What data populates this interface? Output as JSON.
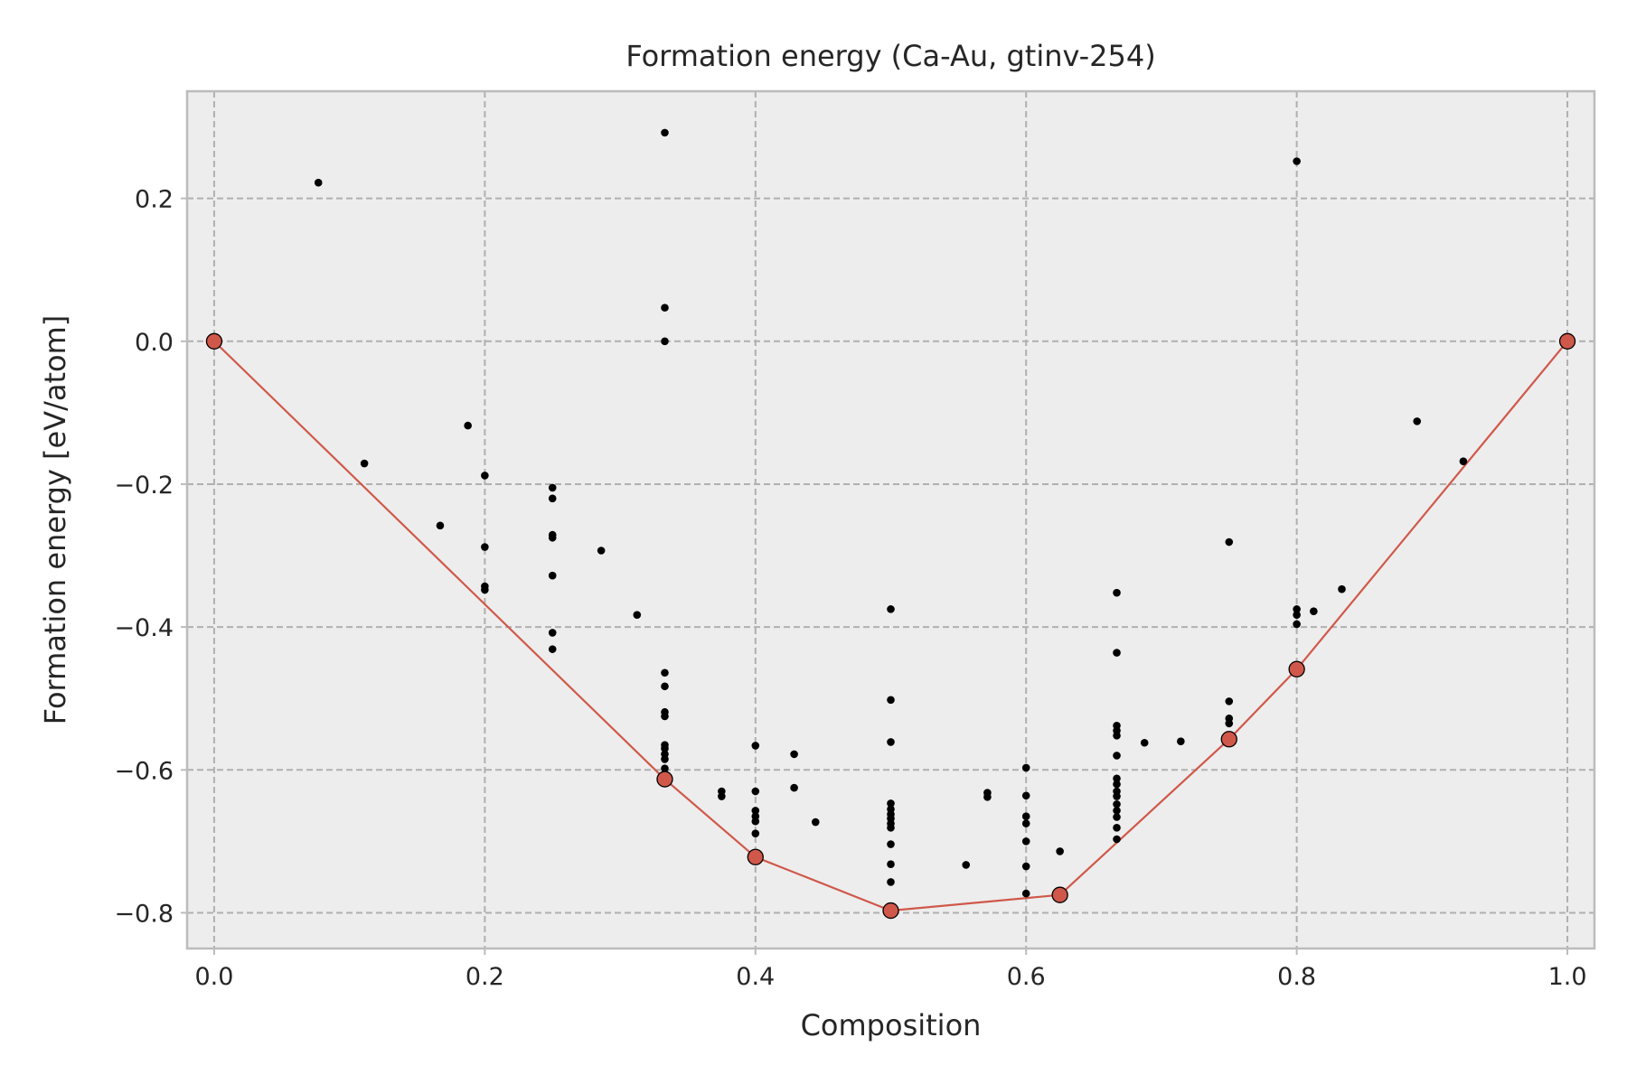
{
  "chart_data": {
    "type": "scatter",
    "title": "Formation energy (Ca-Au, gtinv-254)",
    "xlabel": "Composition",
    "ylabel": "Formation energy [eV/atom]",
    "xlim": [
      -0.02,
      1.02
    ],
    "ylim": [
      -0.85,
      0.35
    ],
    "xticks": [
      0.0,
      0.2,
      0.4,
      0.6,
      0.8,
      1.0
    ],
    "xtick_labels": [
      "0.0",
      "0.2",
      "0.4",
      "0.6",
      "0.8",
      "1.0"
    ],
    "yticks": [
      0.2,
      0.0,
      -0.2,
      -0.4,
      -0.6,
      -0.8
    ],
    "ytick_labels": [
      "0.2",
      "0.0",
      "−0.2",
      "−0.4",
      "−0.6",
      "−0.8"
    ],
    "grid": true,
    "colors": {
      "background": "#ededed",
      "grid": "#b0b0b0",
      "frame": "#bcbcbc",
      "hull": "#d0584a",
      "points": "#000000"
    },
    "series": [
      {
        "kind": "scatter",
        "points": [
          [
            0.077,
            0.222
          ],
          [
            0.111,
            -0.171
          ],
          [
            0.167,
            -0.258
          ],
          [
            0.1875,
            -0.118
          ],
          [
            0.2,
            -0.188
          ],
          [
            0.2,
            -0.288
          ],
          [
            0.2,
            -0.343
          ],
          [
            0.2,
            -0.348
          ],
          [
            0.25,
            -0.205
          ],
          [
            0.25,
            -0.22
          ],
          [
            0.25,
            -0.271
          ],
          [
            0.25,
            -0.275
          ],
          [
            0.25,
            -0.328
          ],
          [
            0.25,
            -0.408
          ],
          [
            0.25,
            -0.431
          ],
          [
            0.286,
            -0.293
          ],
          [
            0.3125,
            -0.383
          ],
          [
            0.333,
            0.292
          ],
          [
            0.333,
            0.047
          ],
          [
            0.333,
            0.0
          ],
          [
            0.333,
            -0.464
          ],
          [
            0.333,
            -0.483
          ],
          [
            0.333,
            -0.519
          ],
          [
            0.333,
            -0.525
          ],
          [
            0.333,
            -0.565
          ],
          [
            0.333,
            -0.57
          ],
          [
            0.333,
            -0.578
          ],
          [
            0.333,
            -0.585
          ],
          [
            0.333,
            -0.598
          ],
          [
            0.375,
            -0.63
          ],
          [
            0.375,
            -0.637
          ],
          [
            0.4,
            -0.566
          ],
          [
            0.4,
            -0.63
          ],
          [
            0.4,
            -0.657
          ],
          [
            0.4,
            -0.665
          ],
          [
            0.4,
            -0.672
          ],
          [
            0.4,
            -0.689
          ],
          [
            0.4286,
            -0.578
          ],
          [
            0.4286,
            -0.625
          ],
          [
            0.4444,
            -0.673
          ],
          [
            0.5,
            -0.375
          ],
          [
            0.5,
            -0.502
          ],
          [
            0.5,
            -0.561
          ],
          [
            0.5,
            -0.647
          ],
          [
            0.5,
            -0.655
          ],
          [
            0.5,
            -0.662
          ],
          [
            0.5,
            -0.668
          ],
          [
            0.5,
            -0.675
          ],
          [
            0.5,
            -0.681
          ],
          [
            0.5,
            -0.704
          ],
          [
            0.5,
            -0.732
          ],
          [
            0.5,
            -0.757
          ],
          [
            0.5556,
            -0.733
          ],
          [
            0.5714,
            -0.632
          ],
          [
            0.5714,
            -0.638
          ],
          [
            0.6,
            -0.597
          ],
          [
            0.6,
            -0.636
          ],
          [
            0.6,
            -0.665
          ],
          [
            0.6,
            -0.675
          ],
          [
            0.6,
            -0.7
          ],
          [
            0.6,
            -0.735
          ],
          [
            0.6,
            -0.773
          ],
          [
            0.625,
            -0.714
          ],
          [
            0.667,
            -0.352
          ],
          [
            0.667,
            -0.436
          ],
          [
            0.667,
            -0.538
          ],
          [
            0.667,
            -0.545
          ],
          [
            0.667,
            -0.552
          ],
          [
            0.667,
            -0.58
          ],
          [
            0.667,
            -0.612
          ],
          [
            0.667,
            -0.62
          ],
          [
            0.667,
            -0.63
          ],
          [
            0.667,
            -0.637
          ],
          [
            0.667,
            -0.648
          ],
          [
            0.667,
            -0.657
          ],
          [
            0.667,
            -0.666
          ],
          [
            0.667,
            -0.681
          ],
          [
            0.667,
            -0.697
          ],
          [
            0.6875,
            -0.562
          ],
          [
            0.7143,
            -0.56
          ],
          [
            0.75,
            -0.281
          ],
          [
            0.75,
            -0.504
          ],
          [
            0.75,
            -0.528
          ],
          [
            0.75,
            -0.535
          ],
          [
            0.8,
            0.252
          ],
          [
            0.8,
            -0.375
          ],
          [
            0.8,
            -0.383
          ],
          [
            0.8,
            -0.396
          ],
          [
            0.8125,
            -0.378
          ],
          [
            0.8333,
            -0.347
          ],
          [
            0.8889,
            -0.112
          ],
          [
            0.9231,
            -0.168
          ]
        ]
      },
      {
        "kind": "hull-line",
        "points": [
          [
            0.0,
            0.0
          ],
          [
            0.333,
            -0.613
          ],
          [
            0.4,
            -0.722
          ],
          [
            0.5,
            -0.797
          ],
          [
            0.625,
            -0.775
          ],
          [
            0.75,
            -0.557
          ],
          [
            0.8,
            -0.459
          ],
          [
            1.0,
            0.0
          ]
        ]
      }
    ]
  }
}
